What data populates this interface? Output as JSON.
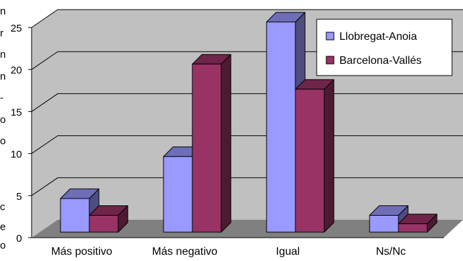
{
  "chart_data": {
    "type": "bar",
    "categories": [
      "Más positivo",
      "Más negativo",
      "Igual",
      "Ns/Nc"
    ],
    "series": [
      {
        "name": "Llobregat-Anoia",
        "values": [
          4,
          9,
          25,
          2
        ],
        "color": "#9999ff"
      },
      {
        "name": "Barcelona-Vallés",
        "values": [
          2,
          20,
          17,
          1
        ],
        "color": "#993366"
      }
    ],
    "y_ticks": [
      "0",
      "5",
      "10",
      "15",
      "20",
      "25"
    ],
    "ylim": [
      0,
      25
    ],
    "grid": true,
    "legend_position": "top-right",
    "wall_color": "#c0c0c0",
    "floor_color": "#808080",
    "left_edge_text": [
      "n",
      "r",
      "n",
      "n",
      "-",
      "o",
      "o",
      "c",
      "e",
      "o"
    ]
  }
}
